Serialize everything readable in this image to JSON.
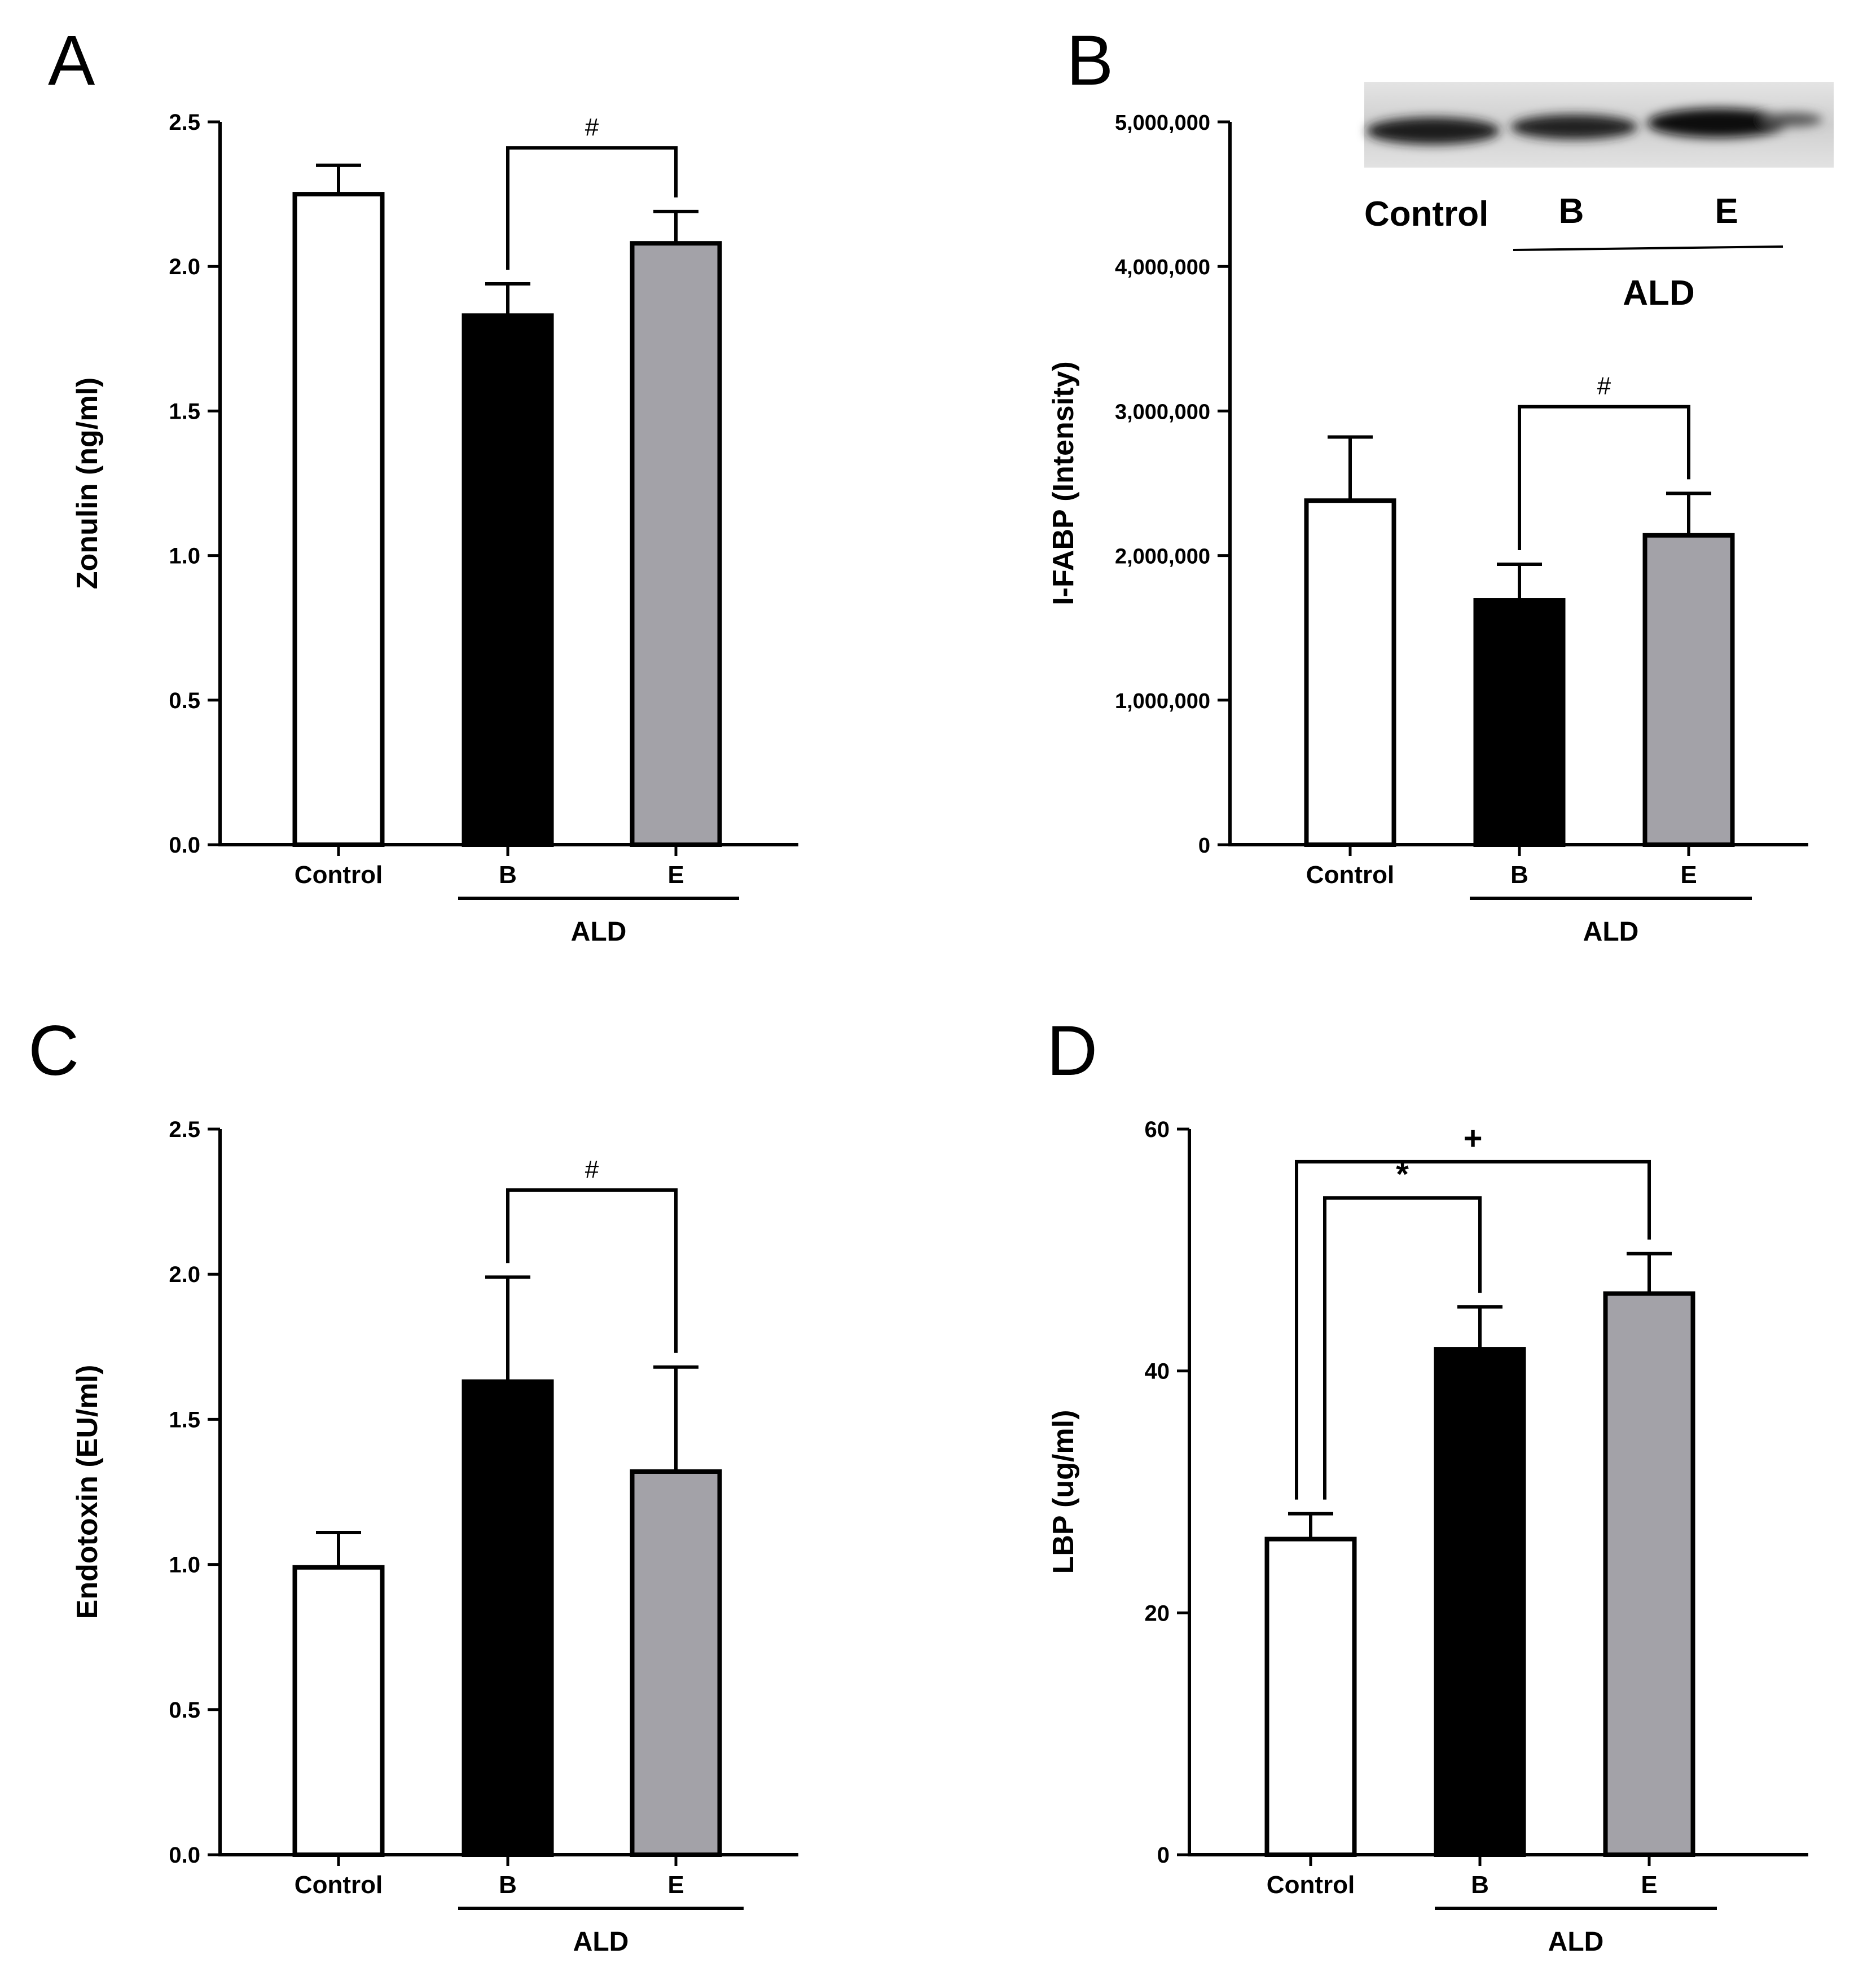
{
  "colors": {
    "control": "#ffffff",
    "B": "#000000",
    "E": "#a3a2a8",
    "stroke": "#000000"
  },
  "chart_data": [
    {
      "panel": "A",
      "type": "bar",
      "categories": [
        "Control",
        "B",
        "E"
      ],
      "group_label": "ALD",
      "group_members": [
        "B",
        "E"
      ],
      "values": [
        2.25,
        1.83,
        2.08
      ],
      "errors": [
        0.1,
        0.11,
        0.11
      ],
      "ylabel": "Zonulin (ng/ml)",
      "ylim": [
        0,
        2.5
      ],
      "yticks": [
        0.0,
        0.5,
        1.0,
        1.5,
        2.0,
        2.5
      ],
      "ytick_labels": [
        "0.0",
        "0.5",
        "1.0",
        "1.5",
        "2.0",
        "2.5"
      ],
      "brackets": [
        {
          "from": "B",
          "to": "E",
          "symbol": "#",
          "level": 2.41
        }
      ]
    },
    {
      "panel": "B",
      "type": "bar",
      "categories": [
        "Control",
        "B",
        "E"
      ],
      "group_label": "ALD",
      "group_members": [
        "B",
        "E"
      ],
      "values": [
        2380000,
        1690000,
        2140000
      ],
      "errors": [
        440000,
        250000,
        290000
      ],
      "ylabel": "I-FABP (Intensity)",
      "ylim": [
        0,
        5000000
      ],
      "yticks": [
        0,
        1000000,
        2000000,
        3000000,
        4000000,
        5000000
      ],
      "ytick_labels": [
        "0",
        "1,000,000",
        "2,000,000",
        "3,000,000",
        "4,000,000",
        "5,000,000"
      ],
      "brackets": [
        {
          "from": "B",
          "to": "E",
          "symbol": "#",
          "level": 3030000
        }
      ],
      "blot_inset": {
        "lane_labels": [
          "Control",
          "B",
          "E"
        ],
        "group_label": "ALD"
      }
    },
    {
      "panel": "C",
      "type": "bar",
      "categories": [
        "Control",
        "B",
        "E"
      ],
      "group_label": "ALD",
      "group_members": [
        "B",
        "E"
      ],
      "values": [
        0.99,
        1.63,
        1.32
      ],
      "errors": [
        0.12,
        0.36,
        0.36
      ],
      "ylabel": "Endotoxin (EU/ml)",
      "ylim": [
        0,
        2.5
      ],
      "yticks": [
        0.0,
        0.5,
        1.0,
        1.5,
        2.0,
        2.5
      ],
      "ytick_labels": [
        "0.0",
        "0.5",
        "1.0",
        "1.5",
        "2.0",
        "2.5"
      ],
      "brackets": [
        {
          "from": "B",
          "to": "E",
          "symbol": "#",
          "level": 2.29
        }
      ]
    },
    {
      "panel": "D",
      "type": "bar",
      "categories": [
        "Control",
        "B",
        "E"
      ],
      "group_label": "ALD",
      "group_members": [
        "B",
        "E"
      ],
      "values": [
        26.1,
        41.8,
        46.4
      ],
      "errors": [
        2.1,
        3.5,
        3.3
      ],
      "ylabel": "LBP (ug/ml)",
      "ylim": [
        0,
        60
      ],
      "yticks": [
        0,
        20,
        40,
        60
      ],
      "ytick_labels": [
        "0",
        "20",
        "40",
        "60"
      ],
      "brackets": [
        {
          "from": "Control",
          "to": "E",
          "symbol": "+",
          "level": 57.3
        },
        {
          "from": "Control",
          "to": "B",
          "symbol": "*",
          "level": 54.3
        }
      ]
    }
  ]
}
